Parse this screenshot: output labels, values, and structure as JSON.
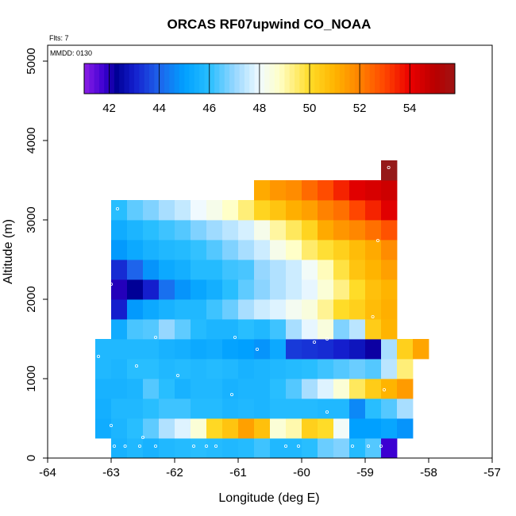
{
  "chart_data": {
    "type": "heatmap",
    "title": "ORCAS RF07upwind CO_NOAA",
    "xlabel": "Longitude (deg E)",
    "ylabel": "Altitude (m)",
    "annotations": {
      "flights": "Flts: 7",
      "mmdd": "MMDD: 0130"
    },
    "xlim": [
      -64,
      -57
    ],
    "ylim": [
      0,
      5200
    ],
    "x_ticks": [
      -64,
      -63,
      -62,
      -61,
      -60,
      -59,
      -58,
      -57
    ],
    "x_tick_labels": [
      "-64",
      "-63",
      "-62",
      "-61",
      "-60",
      "-59",
      "-58",
      "-57"
    ],
    "y_ticks": [
      0,
      1000,
      2000,
      3000,
      4000,
      5000
    ],
    "y_tick_labels": [
      "0",
      "1000",
      "2000",
      "3000",
      "4000",
      "5000"
    ],
    "cell_width_deg": 0.25,
    "cell_height_m": 250,
    "colorbar": {
      "min": 41,
      "max": 55.8,
      "ticks": [
        42,
        44,
        46,
        48,
        50,
        52,
        54
      ],
      "tick_labels": [
        "42",
        "44",
        "46",
        "48",
        "50",
        "52",
        "54"
      ]
    },
    "cells": [
      {
        "lat_alt": 125,
        "lon_start": -63.0,
        "values": [
          45.6,
          45.8,
          45.6,
          45.8,
          45.9,
          46.0,
          45.9,
          45.8,
          45.9,
          46.2,
          45.8,
          45.8,
          46.0,
          46.6,
          46.8,
          45.9,
          46.4,
          41.8
        ]
      },
      {
        "lat_alt": 375,
        "lon_start": -63.25,
        "values": [
          45.4,
          45.7,
          46.0,
          46.5,
          47.3,
          47.8,
          48.6,
          50.1,
          50.6,
          51.4,
          50.7,
          48.6,
          49.0,
          50.3,
          50.0,
          48.1,
          45.0,
          45.0,
          45.2,
          44.8
        ]
      },
      {
        "lat_alt": 625,
        "lon_start": -63.25,
        "values": [
          45.5,
          45.8,
          45.8,
          46.0,
          46.2,
          46.2,
          45.9,
          45.9,
          45.7,
          45.8,
          45.7,
          45.9,
          45.9,
          45.9,
          45.8,
          45.8,
          44.6,
          46.0,
          46.4,
          47.2
        ]
      },
      {
        "lat_alt": 875,
        "lon_start": -63.25,
        "values": [
          45.6,
          45.6,
          45.7,
          46.4,
          46.0,
          45.6,
          45.8,
          45.8,
          45.6,
          45.7,
          45.7,
          46.0,
          46.4,
          47.2,
          47.8,
          48.6,
          49.6,
          50.4,
          51.0,
          51.5
        ]
      },
      {
        "lat_alt": 1125,
        "lon_start": -63.25,
        "values": [
          45.8,
          45.7,
          46.0,
          46.0,
          45.8,
          45.9,
          45.8,
          45.9,
          45.8,
          45.6,
          45.7,
          45.8,
          45.9,
          46.0,
          46.2,
          46.4,
          46.6,
          46.4,
          47.4,
          49.4
        ]
      },
      {
        "lat_alt": 1375,
        "lon_start": -63.25,
        "values": [
          45.8,
          45.8,
          45.8,
          45.8,
          45.6,
          45.5,
          45.3,
          45.4,
          45.1,
          45.0,
          44.8,
          45.3,
          43.4,
          43.3,
          43.2,
          43.0,
          42.8,
          42.2,
          47.2,
          50.3,
          51.3
        ]
      },
      {
        "lat_alt": 1625,
        "lon_start": -63.0,
        "values": [
          45.4,
          46.3,
          46.4,
          47.0,
          46.5,
          45.9,
          45.7,
          45.7,
          46.0,
          45.8,
          46.2,
          47.2,
          47.9,
          48.5,
          46.8,
          47.4,
          50.4,
          51.0
        ]
      },
      {
        "lat_alt": 1875,
        "lon_start": -63.0,
        "values": [
          43.0,
          44.9,
          45.3,
          45.6,
          45.8,
          45.8,
          46.2,
          46.6,
          47.2,
          47.6,
          47.8,
          48.2,
          48.5,
          49.2,
          50.0,
          50.3,
          50.8,
          51.1
        ]
      },
      {
        "lat_alt": 2125,
        "lon_start": -63.0,
        "values": [
          42.0,
          42.3,
          43.0,
          44.2,
          44.8,
          45.2,
          45.5,
          46.0,
          46.5,
          46.9,
          47.3,
          47.6,
          47.9,
          48.6,
          49.3,
          50.0,
          50.7,
          51.0
        ]
      },
      {
        "lat_alt": 2375,
        "lon_start": -63.0,
        "values": [
          43.2,
          44.0,
          44.8,
          45.3,
          45.5,
          45.9,
          45.9,
          46.2,
          46.3,
          47.0,
          47.3,
          47.6,
          48.1,
          48.9,
          49.8,
          50.6,
          51.0,
          51.4
        ]
      },
      {
        "lat_alt": 2625,
        "lon_start": -63.0,
        "values": [
          44.9,
          45.3,
          45.6,
          45.8,
          45.9,
          46.1,
          46.4,
          46.8,
          47.2,
          47.6,
          48.3,
          48.8,
          49.5,
          49.9,
          50.3,
          50.8,
          51.2,
          51.8
        ]
      },
      {
        "lat_alt": 2875,
        "lon_start": -63.0,
        "values": [
          45.4,
          45.7,
          46.0,
          46.2,
          46.4,
          46.8,
          47.1,
          47.4,
          47.7,
          48.3,
          49.1,
          49.6,
          50.2,
          51.2,
          51.6,
          51.9,
          52.3,
          52.8
        ]
      },
      {
        "lat_alt": 3125,
        "lon_start": -63.0,
        "values": [
          46.0,
          46.5,
          46.8,
          47.2,
          47.5,
          48.0,
          48.3,
          48.8,
          49.4,
          50.2,
          50.6,
          51.1,
          51.4,
          52.0,
          52.3,
          53.0,
          53.5,
          54.2
        ]
      },
      {
        "lat_alt": 3375,
        "lon_start": -60.75,
        "values": [
          51.2,
          51.6,
          51.8,
          52.4,
          52.9,
          53.5,
          54.2,
          54.4,
          54.6
        ]
      },
      {
        "lat_alt": 3625,
        "lon_start": -58.75,
        "values": [
          56.0
        ]
      }
    ],
    "sample_points": [
      [
        -62.95,
        150
      ],
      [
        -62.78,
        150
      ],
      [
        -62.55,
        150
      ],
      [
        -62.3,
        150
      ],
      [
        -61.7,
        150
      ],
      [
        -61.5,
        150
      ],
      [
        -61.35,
        150
      ],
      [
        -60.25,
        150
      ],
      [
        -60.05,
        150
      ],
      [
        -59.2,
        150
      ],
      [
        -58.95,
        150
      ],
      [
        -58.75,
        150
      ],
      [
        -62.5,
        260
      ],
      [
        -63.0,
        410
      ],
      [
        -59.6,
        580
      ],
      [
        -61.1,
        800
      ],
      [
        -58.7,
        860
      ],
      [
        -61.95,
        1040
      ],
      [
        -62.6,
        1160
      ],
      [
        -63.2,
        1280
      ],
      [
        -60.7,
        1370
      ],
      [
        -59.8,
        1460
      ],
      [
        -59.6,
        1500
      ],
      [
        -61.05,
        1520
      ],
      [
        -62.3,
        1520
      ],
      [
        -58.88,
        1780
      ],
      [
        -63.0,
        2190
      ],
      [
        -58.8,
        2740
      ],
      [
        -62.9,
        3140
      ],
      [
        -58.63,
        3660
      ]
    ]
  }
}
